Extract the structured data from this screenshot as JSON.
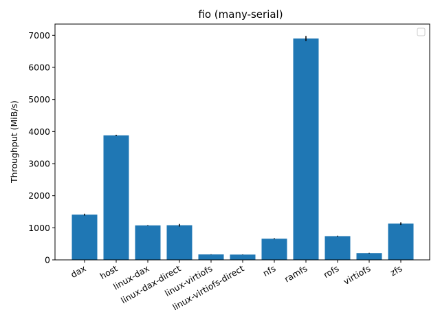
{
  "chart_data": {
    "type": "bar",
    "title": "fio (many-serial)",
    "xlabel": "",
    "ylabel": "Throughput (MiB/s)",
    "categories": [
      "dax",
      "host",
      "linux-dax",
      "linux-dax-direct",
      "linux-virtiofs",
      "linux-virtiofs-direct",
      "nfs",
      "ramfs",
      "rofs",
      "virtiofs",
      "zfs"
    ],
    "values": [
      1410,
      3880,
      1075,
      1080,
      170,
      165,
      660,
      6900,
      740,
      210,
      1130
    ],
    "errors": [
      30,
      20,
      10,
      40,
      5,
      5,
      15,
      80,
      15,
      10,
      40
    ],
    "ylim": [
      0,
      7350
    ],
    "yticks": [
      0,
      1000,
      2000,
      3000,
      4000,
      5000,
      6000,
      7000
    ],
    "bar_color": "#1f77b4",
    "error_color": "#000000",
    "grid": false,
    "legend": {
      "placement": "top-right",
      "entries": []
    }
  }
}
